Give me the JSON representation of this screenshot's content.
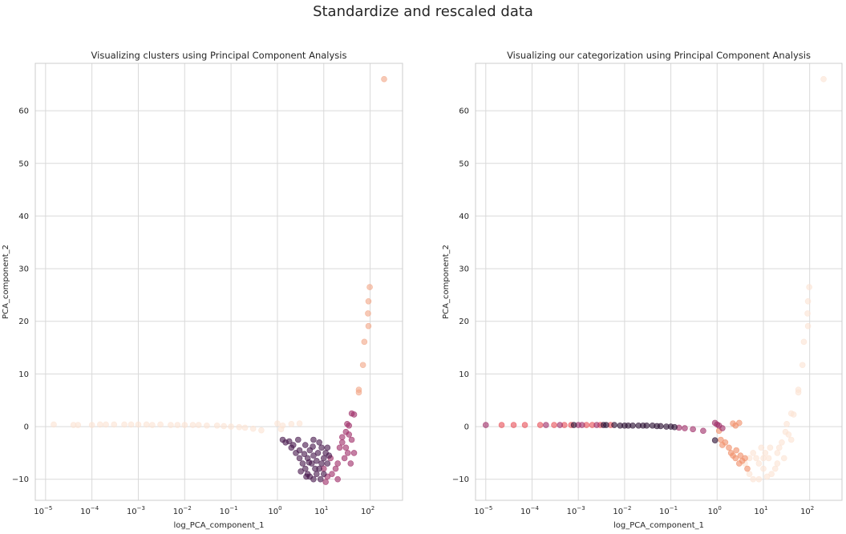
{
  "suptitle": "Standardize and rescaled data",
  "chart_data": [
    {
      "type": "scatter",
      "title": "Visualizing clusters using Principal Component Analysis",
      "xlabel": "log_PCA_component_1",
      "ylabel": "PCA_component_2",
      "xscale": "log",
      "xlim": [
        6e-06,
        500
      ],
      "ylim": [
        -14,
        69
      ],
      "xticks": [
        1e-05,
        0.0001,
        0.001,
        0.01,
        0.1,
        1,
        10,
        100
      ],
      "xtick_exponents": [
        "−5",
        "−4",
        "−3",
        "−2",
        "−1",
        "0",
        "1",
        "2"
      ],
      "yticks": [
        -10,
        0,
        10,
        20,
        30,
        40,
        50,
        60
      ],
      "grid": true,
      "series": [
        {
          "color": "#fbe3d4",
          "points": [
            [
              1.5e-05,
              0.4
            ],
            [
              4e-05,
              0.3
            ],
            [
              5e-05,
              0.3
            ],
            [
              0.0001,
              0.3
            ],
            [
              0.00015,
              0.4
            ],
            [
              0.0002,
              0.4
            ],
            [
              0.0003,
              0.4
            ],
            [
              0.0005,
              0.4
            ],
            [
              0.0007,
              0.4
            ],
            [
              0.001,
              0.4
            ],
            [
              0.0015,
              0.4
            ],
            [
              0.002,
              0.3
            ],
            [
              0.003,
              0.4
            ],
            [
              0.005,
              0.3
            ],
            [
              0.007,
              0.3
            ],
            [
              0.01,
              0.3
            ],
            [
              0.015,
              0.3
            ],
            [
              0.02,
              0.3
            ],
            [
              0.03,
              0.2
            ],
            [
              0.05,
              0.2
            ],
            [
              0.07,
              0.1
            ],
            [
              0.1,
              0.0
            ],
            [
              0.15,
              -0.1
            ],
            [
              0.2,
              -0.2
            ],
            [
              0.3,
              -0.4
            ],
            [
              0.45,
              -0.7
            ],
            [
              1.0,
              0.6
            ],
            [
              1.3,
              0.2
            ],
            [
              2.0,
              0.5
            ],
            [
              3.0,
              0.6
            ],
            [
              1.2,
              -0.5
            ]
          ]
        },
        {
          "color": "#f2a889",
          "points": [
            [
              200,
              66
            ],
            [
              98,
              26.5
            ],
            [
              92,
              23.8
            ],
            [
              90,
              21.5
            ],
            [
              92,
              19.1
            ],
            [
              75,
              16.1
            ],
            [
              70,
              11.7
            ],
            [
              57,
              7
            ],
            [
              57,
              6.5
            ]
          ]
        },
        {
          "color": "#a0306a",
          "points": [
            [
              32,
              0.5
            ],
            [
              35,
              0.2
            ],
            [
              40,
              2.5
            ],
            [
              45,
              2.3
            ],
            [
              30,
              -1
            ],
            [
              25,
              -3
            ],
            [
              22,
              -4
            ],
            [
              28,
              -6
            ],
            [
              20,
              -7
            ],
            [
              18,
              -8
            ],
            [
              15,
              -9
            ],
            [
              20,
              -10
            ],
            [
              12,
              -9.5
            ],
            [
              10,
              -8
            ],
            [
              14,
              -6
            ],
            [
              25,
              -2
            ],
            [
              30,
              -4
            ],
            [
              35,
              -1.5
            ],
            [
              33,
              -5
            ],
            [
              40,
              -2.5
            ],
            [
              45,
              -5
            ],
            [
              38,
              -7
            ],
            [
              11,
              -10.5
            ]
          ]
        },
        {
          "color": "#4a1b4f",
          "points": [
            [
              1.5,
              -3
            ],
            [
              2,
              -4
            ],
            [
              2.5,
              -5
            ],
            [
              3,
              -6
            ],
            [
              3.5,
              -7
            ],
            [
              4,
              -8
            ],
            [
              4.5,
              -9
            ],
            [
              5,
              -9.5
            ],
            [
              6,
              -10
            ],
            [
              7,
              -9
            ],
            [
              8,
              -8
            ],
            [
              9,
              -7
            ],
            [
              10,
              -6
            ],
            [
              11,
              -5
            ],
            [
              12,
              -4
            ],
            [
              8,
              -3
            ],
            [
              6,
              -2.5
            ],
            [
              4,
              -3.5
            ],
            [
              5,
              -4.5
            ],
            [
              6,
              -5.5
            ],
            [
              7,
              -6.5
            ],
            [
              3,
              -4.5
            ],
            [
              2.2,
              -3.5
            ],
            [
              1.8,
              -2.8
            ],
            [
              4.5,
              -6
            ],
            [
              5.5,
              -7
            ],
            [
              6.5,
              -8
            ],
            [
              7.5,
              -5
            ],
            [
              9,
              -4
            ],
            [
              10,
              -9
            ],
            [
              3.8,
              -5.2
            ],
            [
              4.8,
              -6.8
            ],
            [
              5.8,
              -3.8
            ],
            [
              2.8,
              -2.5
            ],
            [
              1.3,
              -2.5
            ],
            [
              3.2,
              -8.5
            ],
            [
              8.5,
              -10
            ],
            [
              12,
              -7
            ],
            [
              13,
              -5.5
            ],
            [
              4.2,
              -9.5
            ]
          ]
        }
      ]
    },
    {
      "type": "scatter",
      "title": "Visualizing our categorization using Principal Component Analysis",
      "xlabel": "log_PCA_component_1",
      "ylabel": "PCA_component_2",
      "xscale": "log",
      "xlim": [
        6e-06,
        500
      ],
      "ylim": [
        -14,
        69
      ],
      "xticks": [
        1e-05,
        0.0001,
        0.001,
        0.01,
        0.1,
        1,
        10,
        100
      ],
      "xtick_exponents": [
        "−5",
        "−4",
        "−3",
        "−2",
        "−1",
        "0",
        "1",
        "2"
      ],
      "yticks": [
        -10,
        0,
        10,
        20,
        30,
        40,
        50,
        60
      ],
      "grid": true,
      "series": [
        {
          "color": "#fbe3d4",
          "points": [
            [
              200,
              66
            ],
            [
              98,
              26.5
            ],
            [
              92,
              23.8
            ],
            [
              90,
              21.5
            ],
            [
              92,
              19.1
            ],
            [
              75,
              16.1
            ],
            [
              70,
              11.7
            ],
            [
              57,
              7
            ],
            [
              57,
              6.5
            ],
            [
              40,
              2.5
            ],
            [
              45,
              2.3
            ],
            [
              32,
              0.5
            ],
            [
              30,
              -1
            ],
            [
              25,
              -3
            ],
            [
              20,
              -7
            ],
            [
              15,
              -9
            ],
            [
              12,
              -9.5
            ],
            [
              10,
              -8
            ],
            [
              8,
              -10
            ],
            [
              6,
              -10
            ],
            [
              5,
              -9
            ],
            [
              7,
              -6
            ],
            [
              9,
              -4
            ],
            [
              11,
              -5
            ],
            [
              6,
              -5
            ],
            [
              8,
              -7
            ],
            [
              10,
              -6
            ],
            [
              13,
              -6
            ],
            [
              4,
              -7
            ],
            [
              5,
              -6
            ],
            [
              14,
              -4
            ],
            [
              18,
              -8
            ],
            [
              20,
              -5
            ],
            [
              22,
              -4
            ],
            [
              35,
              -1.5
            ],
            [
              28,
              -6
            ],
            [
              40,
              -2.5
            ]
          ]
        },
        {
          "color": "#f0906a",
          "points": [
            [
              1.2,
              -2.5
            ],
            [
              1.5,
              -3
            ],
            [
              1.8,
              -4
            ],
            [
              2,
              -5
            ],
            [
              2.2,
              -5.5
            ],
            [
              2.5,
              -6
            ],
            [
              3,
              -7
            ],
            [
              3.5,
              -6.5
            ],
            [
              4,
              -6
            ],
            [
              1.3,
              -3.5
            ],
            [
              2.6,
              -4.5
            ],
            [
              3.2,
              -5.5
            ],
            [
              4.5,
              -8
            ],
            [
              1.1,
              -0.8
            ],
            [
              2.2,
              0.6
            ],
            [
              2.5,
              0.2
            ],
            [
              3.0,
              0.7
            ]
          ]
        },
        {
          "color": "#e8535b",
          "points": [
            [
              2.2e-05,
              0.3
            ],
            [
              4e-05,
              0.3
            ],
            [
              7e-05,
              0.3
            ],
            [
              0.00015,
              0.3
            ],
            [
              0.0003,
              0.3
            ],
            [
              0.0005,
              0.3
            ],
            [
              0.0015,
              0.3
            ],
            [
              0.002,
              0.3
            ],
            [
              0.003,
              0.3
            ],
            [
              0.005,
              0.3
            ],
            [
              0.0007,
              0.3
            ]
          ]
        },
        {
          "color": "#a0306a",
          "points": [
            [
              1e-05,
              0.3
            ],
            [
              0.0002,
              0.3
            ],
            [
              0.0004,
              0.3
            ],
            [
              0.001,
              0.3
            ],
            [
              0.0012,
              0.3
            ],
            [
              0.0025,
              0.3
            ],
            [
              0.9,
              0.7
            ],
            [
              1.0,
              0.4
            ],
            [
              1.1,
              0.2
            ],
            [
              1.3,
              -0.3
            ],
            [
              0.3,
              -0.5
            ],
            [
              0.5,
              -0.8
            ],
            [
              0.2,
              -0.3
            ],
            [
              0.15,
              -0.2
            ]
          ]
        },
        {
          "color": "#2c1033",
          "points": [
            [
              0.004,
              0.3
            ],
            [
              0.006,
              0.3
            ],
            [
              0.008,
              0.2
            ],
            [
              0.01,
              0.2
            ],
            [
              0.012,
              0.2
            ],
            [
              0.015,
              0.2
            ],
            [
              0.02,
              0.2
            ],
            [
              0.025,
              0.2
            ],
            [
              0.03,
              0.2
            ],
            [
              0.04,
              0.2
            ],
            [
              0.05,
              0.1
            ],
            [
              0.06,
              0.1
            ],
            [
              0.08,
              0.0
            ],
            [
              0.1,
              0.0
            ],
            [
              0.12,
              -0.1
            ],
            [
              0.0008,
              0.3
            ],
            [
              0.9,
              -2.6
            ],
            [
              0.0035,
              0.3
            ]
          ]
        }
      ]
    }
  ]
}
